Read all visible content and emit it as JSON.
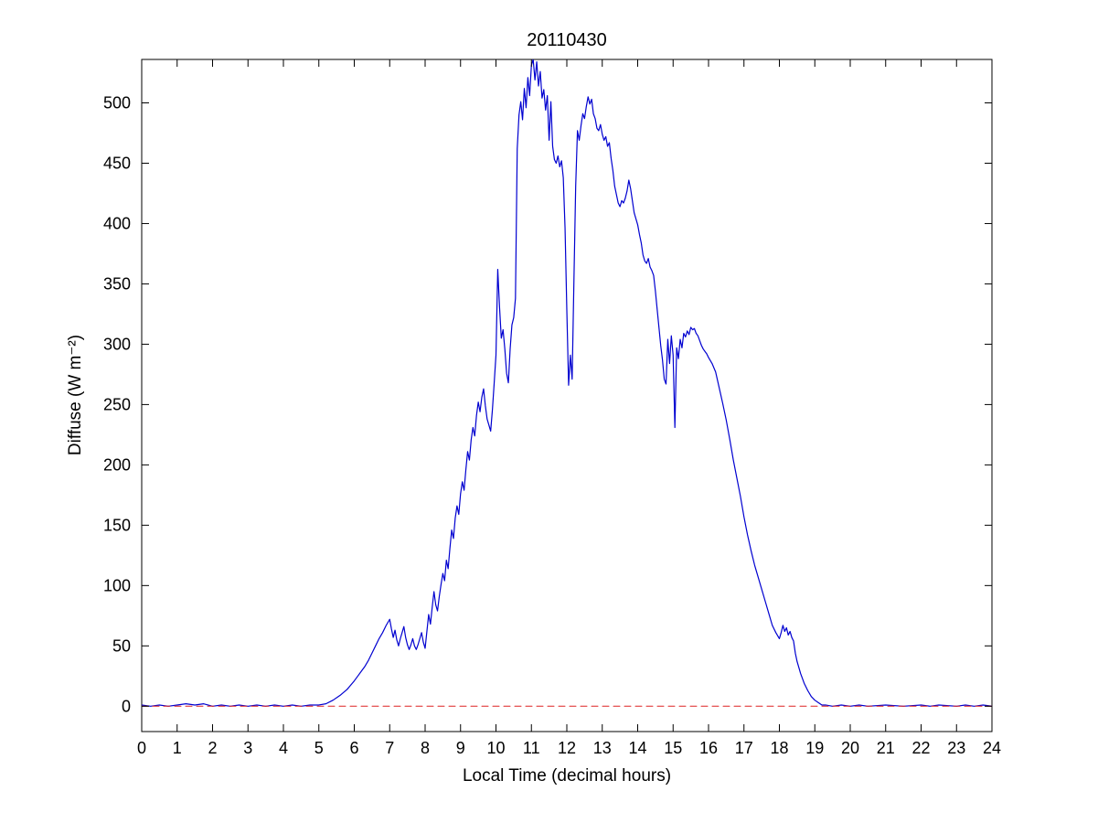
{
  "figure": {
    "title": "20110430",
    "xlabel": "Local Time (decimal hours)",
    "ylabel": "Diffuse (W m⁻²)"
  },
  "chart_data": {
    "type": "line",
    "title": "20110430",
    "xlabel": "Local Time (decimal hours)",
    "ylabel": "Diffuse (W m⁻²)",
    "xlim": [
      0,
      24
    ],
    "ylim": [
      -21,
      536
    ],
    "xticks": [
      0,
      1,
      2,
      3,
      4,
      5,
      6,
      7,
      8,
      9,
      10,
      11,
      12,
      13,
      14,
      15,
      16,
      17,
      18,
      19,
      20,
      21,
      22,
      23,
      24
    ],
    "yticks": [
      0,
      50,
      100,
      150,
      200,
      250,
      300,
      350,
      400,
      450,
      500
    ],
    "grid": false,
    "legend_position": "none",
    "colors": {
      "line": "#0000D0",
      "zero_reference": "#DD2222",
      "axis": "#000000",
      "background": "#ffffff"
    },
    "series": [
      {
        "name": "diffuse-irradiance",
        "color": "#0000D0",
        "style": "solid",
        "points": [
          [
            0,
            1
          ],
          [
            0.25,
            0
          ],
          [
            0.5,
            1
          ],
          [
            0.75,
            0
          ],
          [
            1,
            1
          ],
          [
            1.25,
            2
          ],
          [
            1.5,
            1
          ],
          [
            1.75,
            2
          ],
          [
            2,
            0
          ],
          [
            2.25,
            1
          ],
          [
            2.5,
            0
          ],
          [
            2.75,
            1
          ],
          [
            3,
            0
          ],
          [
            3.25,
            1
          ],
          [
            3.5,
            0
          ],
          [
            3.75,
            1
          ],
          [
            4,
            0
          ],
          [
            4.25,
            1
          ],
          [
            4.5,
            0
          ],
          [
            4.75,
            1
          ],
          [
            5,
            1
          ],
          [
            5.2,
            2
          ],
          [
            5.4,
            5
          ],
          [
            5.6,
            9
          ],
          [
            5.8,
            14
          ],
          [
            6,
            21
          ],
          [
            6.1,
            25
          ],
          [
            6.2,
            29
          ],
          [
            6.3,
            33
          ],
          [
            6.4,
            38
          ],
          [
            6.5,
            44
          ],
          [
            6.6,
            50
          ],
          [
            6.7,
            56
          ],
          [
            6.8,
            61
          ],
          [
            6.9,
            67
          ],
          [
            7,
            72
          ],
          [
            7.05,
            64
          ],
          [
            7.1,
            57
          ],
          [
            7.15,
            63
          ],
          [
            7.2,
            55
          ],
          [
            7.25,
            50
          ],
          [
            7.3,
            56
          ],
          [
            7.35,
            61
          ],
          [
            7.4,
            66
          ],
          [
            7.45,
            57
          ],
          [
            7.5,
            51
          ],
          [
            7.55,
            47
          ],
          [
            7.6,
            51
          ],
          [
            7.65,
            56
          ],
          [
            7.7,
            50
          ],
          [
            7.75,
            47
          ],
          [
            7.8,
            51
          ],
          [
            7.85,
            56
          ],
          [
            7.9,
            61
          ],
          [
            7.95,
            53
          ],
          [
            8,
            48
          ],
          [
            8.05,
            62
          ],
          [
            8.1,
            76
          ],
          [
            8.15,
            68
          ],
          [
            8.2,
            82
          ],
          [
            8.25,
            95
          ],
          [
            8.3,
            84
          ],
          [
            8.35,
            79
          ],
          [
            8.4,
            91
          ],
          [
            8.45,
            101
          ],
          [
            8.5,
            110
          ],
          [
            8.55,
            104
          ],
          [
            8.6,
            121
          ],
          [
            8.65,
            114
          ],
          [
            8.7,
            131
          ],
          [
            8.75,
            146
          ],
          [
            8.8,
            139
          ],
          [
            8.85,
            156
          ],
          [
            8.9,
            166
          ],
          [
            8.95,
            159
          ],
          [
            9,
            176
          ],
          [
            9.05,
            186
          ],
          [
            9.1,
            179
          ],
          [
            9.15,
            196
          ],
          [
            9.2,
            211
          ],
          [
            9.25,
            204
          ],
          [
            9.3,
            221
          ],
          [
            9.35,
            231
          ],
          [
            9.4,
            224
          ],
          [
            9.45,
            241
          ],
          [
            9.5,
            252
          ],
          [
            9.55,
            244
          ],
          [
            9.6,
            256
          ],
          [
            9.65,
            263
          ],
          [
            9.7,
            249
          ],
          [
            9.75,
            238
          ],
          [
            9.8,
            233
          ],
          [
            9.85,
            228
          ],
          [
            9.9,
            246
          ],
          [
            9.95,
            268
          ],
          [
            10,
            291
          ],
          [
            10.05,
            362
          ],
          [
            10.1,
            331
          ],
          [
            10.15,
            305
          ],
          [
            10.2,
            312
          ],
          [
            10.25,
            296
          ],
          [
            10.3,
            276
          ],
          [
            10.35,
            268
          ],
          [
            10.4,
            296
          ],
          [
            10.45,
            316
          ],
          [
            10.5,
            322
          ],
          [
            10.55,
            338
          ],
          [
            10.6,
            462
          ],
          [
            10.65,
            490
          ],
          [
            10.7,
            501
          ],
          [
            10.75,
            486
          ],
          [
            10.8,
            512
          ],
          [
            10.85,
            496
          ],
          [
            10.9,
            521
          ],
          [
            10.95,
            506
          ],
          [
            11,
            531
          ],
          [
            11.05,
            536
          ],
          [
            11.1,
            519
          ],
          [
            11.15,
            534
          ],
          [
            11.2,
            514
          ],
          [
            11.25,
            526
          ],
          [
            11.3,
            504
          ],
          [
            11.35,
            511
          ],
          [
            11.4,
            494
          ],
          [
            11.45,
            506
          ],
          [
            11.5,
            469
          ],
          [
            11.55,
            501
          ],
          [
            11.6,
            464
          ],
          [
            11.65,
            453
          ],
          [
            11.7,
            450
          ],
          [
            11.75,
            456
          ],
          [
            11.8,
            447
          ],
          [
            11.85,
            452
          ],
          [
            11.9,
            438
          ],
          [
            11.95,
            396
          ],
          [
            12,
            328
          ],
          [
            12.05,
            266
          ],
          [
            12.1,
            291
          ],
          [
            12.15,
            271
          ],
          [
            12.2,
            352
          ],
          [
            12.25,
            431
          ],
          [
            12.3,
            477
          ],
          [
            12.35,
            469
          ],
          [
            12.4,
            481
          ],
          [
            12.45,
            491
          ],
          [
            12.5,
            487
          ],
          [
            12.55,
            497
          ],
          [
            12.6,
            505
          ],
          [
            12.65,
            499
          ],
          [
            12.7,
            503
          ],
          [
            12.75,
            491
          ],
          [
            12.8,
            487
          ],
          [
            12.85,
            479
          ],
          [
            12.9,
            477
          ],
          [
            12.95,
            482
          ],
          [
            13,
            474
          ],
          [
            13.05,
            469
          ],
          [
            13.1,
            472
          ],
          [
            13.15,
            464
          ],
          [
            13.2,
            467
          ],
          [
            13.25,
            454
          ],
          [
            13.3,
            444
          ],
          [
            13.35,
            431
          ],
          [
            13.4,
            424
          ],
          [
            13.45,
            417
          ],
          [
            13.5,
            414
          ],
          [
            13.55,
            419
          ],
          [
            13.6,
            417
          ],
          [
            13.65,
            421
          ],
          [
            13.7,
            427
          ],
          [
            13.75,
            436
          ],
          [
            13.8,
            429
          ],
          [
            13.85,
            419
          ],
          [
            13.9,
            409
          ],
          [
            13.95,
            404
          ],
          [
            14,
            399
          ],
          [
            14.05,
            391
          ],
          [
            14.1,
            384
          ],
          [
            14.15,
            374
          ],
          [
            14.2,
            369
          ],
          [
            14.25,
            367
          ],
          [
            14.3,
            371
          ],
          [
            14.35,
            364
          ],
          [
            14.4,
            361
          ],
          [
            14.45,
            357
          ],
          [
            14.5,
            344
          ],
          [
            14.55,
            329
          ],
          [
            14.6,
            314
          ],
          [
            14.65,
            299
          ],
          [
            14.7,
            287
          ],
          [
            14.75,
            271
          ],
          [
            14.8,
            267
          ],
          [
            14.85,
            304
          ],
          [
            14.9,
            284
          ],
          [
            14.95,
            307
          ],
          [
            15,
            291
          ],
          [
            15.05,
            231
          ],
          [
            15.1,
            297
          ],
          [
            15.15,
            288
          ],
          [
            15.2,
            304
          ],
          [
            15.25,
            297
          ],
          [
            15.3,
            309
          ],
          [
            15.35,
            306
          ],
          [
            15.4,
            311
          ],
          [
            15.45,
            308
          ],
          [
            15.5,
            314
          ],
          [
            15.55,
            312
          ],
          [
            15.6,
            313
          ],
          [
            15.65,
            309
          ],
          [
            15.7,
            307
          ],
          [
            15.75,
            303
          ],
          [
            15.8,
            299
          ],
          [
            15.85,
            296
          ],
          [
            15.9,
            294
          ],
          [
            15.95,
            292
          ],
          [
            16,
            289
          ],
          [
            16.1,
            284
          ],
          [
            16.2,
            277
          ],
          [
            16.3,
            264
          ],
          [
            16.4,
            251
          ],
          [
            16.5,
            237
          ],
          [
            16.6,
            221
          ],
          [
            16.7,
            204
          ],
          [
            16.8,
            189
          ],
          [
            16.9,
            174
          ],
          [
            17,
            157
          ],
          [
            17.1,
            142
          ],
          [
            17.2,
            129
          ],
          [
            17.3,
            117
          ],
          [
            17.4,
            107
          ],
          [
            17.5,
            97
          ],
          [
            17.6,
            87
          ],
          [
            17.7,
            77
          ],
          [
            17.8,
            67
          ],
          [
            17.9,
            61
          ],
          [
            18,
            56
          ],
          [
            18.05,
            61
          ],
          [
            18.1,
            67
          ],
          [
            18.15,
            62
          ],
          [
            18.2,
            65
          ],
          [
            18.25,
            59
          ],
          [
            18.3,
            62
          ],
          [
            18.35,
            57
          ],
          [
            18.4,
            54
          ],
          [
            18.45,
            44
          ],
          [
            18.5,
            37
          ],
          [
            18.6,
            27
          ],
          [
            18.7,
            19
          ],
          [
            18.8,
            13
          ],
          [
            18.9,
            8
          ],
          [
            19,
            5
          ],
          [
            19.1,
            3
          ],
          [
            19.2,
            1
          ],
          [
            19.3,
            1
          ],
          [
            19.5,
            0
          ],
          [
            19.75,
            1
          ],
          [
            20,
            0
          ],
          [
            20.25,
            1
          ],
          [
            20.5,
            0
          ],
          [
            21,
            1
          ],
          [
            21.5,
            0
          ],
          [
            22,
            1
          ],
          [
            22.25,
            0
          ],
          [
            22.5,
            1
          ],
          [
            23,
            0
          ],
          [
            23.25,
            1
          ],
          [
            23.5,
            0
          ],
          [
            23.75,
            1
          ],
          [
            24,
            0
          ]
        ]
      },
      {
        "name": "zero-reference",
        "color": "#DD2222",
        "style": "dashed",
        "points": [
          [
            0,
            0
          ],
          [
            24,
            0
          ]
        ]
      }
    ]
  }
}
